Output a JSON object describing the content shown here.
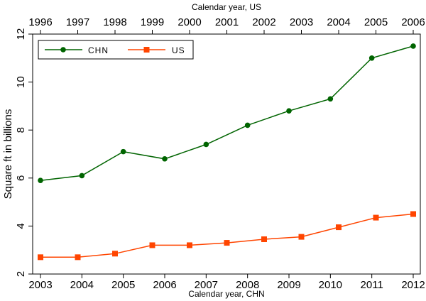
{
  "chart_data": {
    "type": "line",
    "x_bottom": {
      "label": "Calendar year, CHN",
      "ticks": [
        "2003",
        "2004",
        "2005",
        "2006",
        "2007",
        "2008",
        "2009",
        "2010",
        "2011",
        "2012"
      ]
    },
    "x_top": {
      "label": "Calendar year, US",
      "ticks": [
        "1996",
        "1997",
        "1998",
        "1999",
        "2000",
        "2001",
        "2002",
        "2003",
        "2004",
        "2005",
        "2006"
      ]
    },
    "ylabel": "Square ft in billions",
    "yticks": [
      "2",
      "4",
      "6",
      "8",
      "10",
      "12"
    ],
    "ylim": [
      2,
      12
    ],
    "series": [
      {
        "name": "CHN",
        "axis": "bottom",
        "color": "#006400",
        "marker": "circle",
        "x": [
          2003,
          2004,
          2005,
          2006,
          2007,
          2008,
          2009,
          2010,
          2011,
          2012
        ],
        "values": [
          5.9,
          6.1,
          7.1,
          6.8,
          7.4,
          8.2,
          8.8,
          9.3,
          11.0,
          11.5
        ]
      },
      {
        "name": "US",
        "axis": "top",
        "color": "#ff4500",
        "marker": "square",
        "x": [
          1996,
          1997,
          1998,
          1999,
          2000,
          2001,
          2002,
          2003,
          2004,
          2005,
          2006
        ],
        "values": [
          2.7,
          2.7,
          2.85,
          3.2,
          3.2,
          3.3,
          3.45,
          3.55,
          3.95,
          4.35,
          4.5
        ]
      }
    ],
    "legend": "top-left",
    "grid": false
  }
}
